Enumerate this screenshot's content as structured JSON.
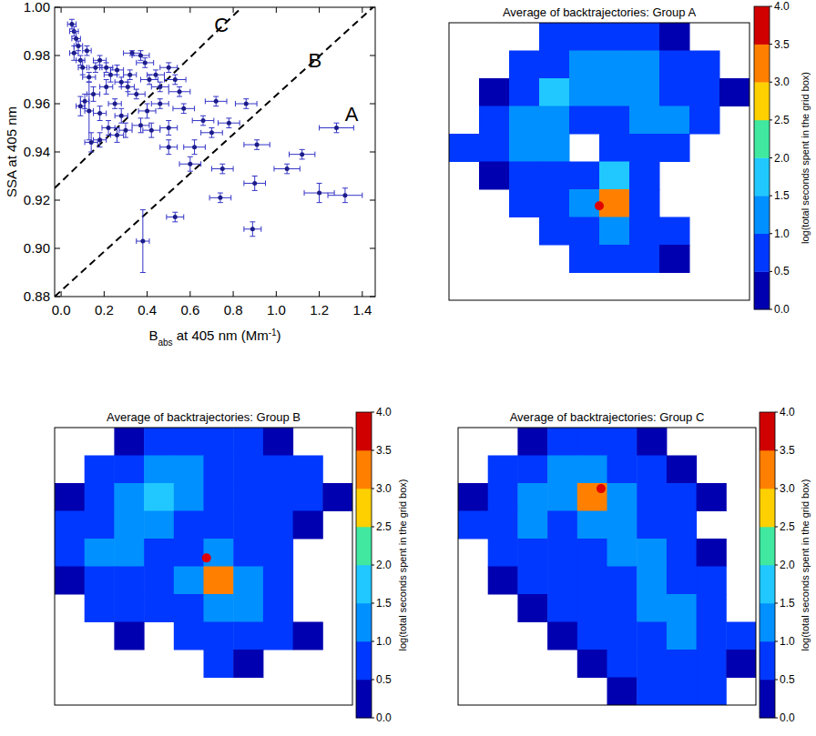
{
  "chart_data": [
    {
      "type": "scatter",
      "x_label": [
        {
          "text": "B"
        },
        {
          "text": "abs",
          "style": "sub"
        },
        {
          "text": " at 405 nm (Mm"
        },
        {
          "text": "-1",
          "style": "sup"
        },
        {
          "text": ")"
        }
      ],
      "y_label": "SSA at 405 nm",
      "xlim": [
        -0.03,
        1.46
      ],
      "ylim": [
        0.88,
        1.0
      ],
      "xticks": [
        {
          "value": 0,
          "label": "0.0"
        },
        0.2,
        0.4,
        0.6,
        0.8,
        {
          "value": 1,
          "label": "1.0"
        },
        1.2,
        1.4
      ],
      "yticks": [
        0.88,
        {
          "value": 0.9,
          "label": "0.90"
        },
        0.92,
        0.94,
        0.96,
        0.98,
        {
          "value": 1,
          "label": "1.00"
        }
      ],
      "marker": "circle",
      "color": "#1c1c8a",
      "x": [
        0.05,
        0.06,
        0.07,
        0.08,
        0.06,
        0.09,
        0.12,
        0.1,
        0.13,
        0.16,
        0.18,
        0.21,
        0.23,
        0.26,
        0.28,
        0.31,
        0.32,
        0.33,
        0.37,
        0.39,
        0.21,
        0.15,
        0.11,
        0.09,
        0.18,
        0.25,
        0.28,
        0.35,
        0.41,
        0.44,
        0.46,
        0.5,
        0.53,
        0.46,
        0.4,
        0.37,
        0.3,
        0.22,
        0.18,
        0.14,
        0.13,
        0.26,
        0.42,
        0.5,
        0.55,
        0.72,
        0.78,
        0.86,
        0.7,
        0.62,
        0.5,
        0.6,
        0.75,
        0.91,
        0.74,
        0.53,
        0.89,
        0.38,
        0.9,
        1.05,
        1.12,
        1.28,
        1.2,
        1.32,
        0.66,
        0.57
      ],
      "y": [
        0.993,
        0.99,
        0.987,
        0.984,
        0.981,
        0.978,
        0.982,
        0.975,
        0.971,
        0.975,
        0.978,
        0.975,
        0.972,
        0.974,
        0.969,
        0.967,
        0.972,
        0.981,
        0.98,
        0.977,
        0.967,
        0.964,
        0.961,
        0.959,
        0.956,
        0.96,
        0.955,
        0.964,
        0.97,
        0.972,
        0.967,
        0.975,
        0.97,
        0.96,
        0.957,
        0.951,
        0.949,
        0.95,
        0.945,
        0.944,
        0.957,
        0.947,
        0.949,
        0.95,
        0.965,
        0.961,
        0.952,
        0.96,
        0.948,
        0.942,
        0.942,
        0.935,
        0.933,
        0.943,
        0.921,
        0.913,
        0.908,
        0.903,
        0.927,
        0.933,
        0.939,
        0.95,
        0.923,
        0.922,
        0.953,
        0.958
      ],
      "x_error": [
        0.02,
        0.02,
        0.02,
        0.02,
        0.02,
        0.02,
        0.02,
        0.02,
        0.03,
        0.03,
        0.03,
        0.03,
        0.03,
        0.03,
        0.03,
        0.03,
        0.03,
        0.04,
        0.04,
        0.04,
        0.03,
        0.03,
        0.02,
        0.02,
        0.03,
        0.03,
        0.03,
        0.04,
        0.04,
        0.04,
        0.04,
        0.04,
        0.05,
        0.04,
        0.04,
        0.04,
        0.03,
        0.03,
        0.03,
        0.03,
        0.02,
        0.03,
        0.04,
        0.04,
        0.05,
        0.05,
        0.05,
        0.05,
        0.05,
        0.05,
        0.04,
        0.05,
        0.05,
        0.06,
        0.05,
        0.04,
        0.04,
        0.03,
        0.05,
        0.06,
        0.06,
        0.08,
        0.07,
        0.08,
        0.05,
        0.05
      ],
      "y_error": [
        0.002,
        0.002,
        0.003,
        0.002,
        0.003,
        0.002,
        0.002,
        0.003,
        0.002,
        0.002,
        0.002,
        0.002,
        0.003,
        0.002,
        0.002,
        0.002,
        0.002,
        0.001,
        0.002,
        0.002,
        0.003,
        0.003,
        0.003,
        0.004,
        0.003,
        0.002,
        0.003,
        0.002,
        0.002,
        0.002,
        0.002,
        0.002,
        0.002,
        0.002,
        0.003,
        0.003,
        0.003,
        0.003,
        0.003,
        0.004,
        0.012,
        0.003,
        0.003,
        0.003,
        0.002,
        0.002,
        0.002,
        0.002,
        0.002,
        0.003,
        0.003,
        0.003,
        0.002,
        0.002,
        0.002,
        0.002,
        0.003,
        0.013,
        0.003,
        0.002,
        0.002,
        0.002,
        0.004,
        0.003,
        0.002,
        0.002
      ],
      "lines": [
        {
          "x": [
            -0.03,
            0.84
          ],
          "y": [
            0.925,
            1.0
          ],
          "line_style": "dashed"
        },
        {
          "x": [
            -0.03,
            1.45
          ],
          "y": [
            0.88,
            1.0
          ],
          "line_style": "dashed"
        }
      ],
      "annotations": [
        {
          "text": "C",
          "x": 0.745,
          "y": 0.99
        },
        {
          "text": "B",
          "x": 1.18,
          "y": 0.975
        },
        {
          "text": "A",
          "x": 1.35,
          "y": 0.953
        }
      ]
    },
    {
      "type": "heatmap",
      "title": "Average of backtrajectories: Group A",
      "colorbar_label": "log(total seconds spent in the grid box)",
      "colorbar_range": [
        0,
        4
      ],
      "colorbar_ticks": [
        {
          "value": 0,
          "label": "0.0"
        },
        0.5,
        {
          "value": 1,
          "label": "1.0"
        },
        1.5,
        {
          "value": 2,
          "label": "2.0"
        },
        2.5,
        {
          "value": 3,
          "label": "3.0"
        },
        3.5,
        {
          "value": 4,
          "label": "4.0"
        }
      ],
      "colors": [
        "#0000b0",
        "#0038ff",
        "#0090ff",
        "#20c8ff",
        "#40e8a0",
        "#ffd000",
        "#ff8000",
        "#d00000"
      ],
      "cells": [
        [
          null,
          null,
          null,
          0.6,
          0.8,
          0.7,
          0.5,
          0.4,
          null,
          null
        ],
        [
          null,
          null,
          0.5,
          0.9,
          1.2,
          1.4,
          1.0,
          0.8,
          0.6,
          null
        ],
        [
          null,
          0.4,
          0.8,
          1.6,
          1.3,
          1.1,
          1.2,
          0.9,
          0.7,
          0.4
        ],
        [
          null,
          0.6,
          1.0,
          1.4,
          0.9,
          0.8,
          1.0,
          1.3,
          0.6,
          null
        ],
        [
          0.5,
          0.8,
          1.2,
          1.0,
          null,
          0.7,
          0.9,
          0.6,
          null,
          null
        ],
        [
          null,
          0.4,
          0.7,
          0.9,
          0.6,
          1.5,
          0.8,
          null,
          null,
          null
        ],
        [
          null,
          null,
          0.5,
          0.6,
          1.1,
          3.2,
          0.9,
          null,
          null,
          null
        ],
        [
          null,
          null,
          null,
          0.5,
          0.9,
          1.0,
          0.7,
          0.5,
          null,
          null
        ],
        [
          null,
          null,
          null,
          null,
          0.6,
          0.5,
          0.6,
          0.4,
          null,
          null
        ],
        [
          null,
          null,
          null,
          null,
          null,
          null,
          null,
          null,
          null,
          null
        ]
      ]
    },
    {
      "type": "heatmap",
      "title": "Average of backtrajectories: Group B",
      "colorbar_label": "log(total seconds spent in the grid box)",
      "colorbar_range": [
        0,
        4
      ],
      "colorbar_ticks": [
        {
          "value": 0,
          "label": "0.0"
        },
        0.5,
        {
          "value": 1,
          "label": "1.0"
        },
        1.5,
        {
          "value": 2,
          "label": "2.0"
        },
        2.5,
        {
          "value": 3,
          "label": "3.0"
        },
        3.5,
        {
          "value": 4,
          "label": "4.0"
        }
      ],
      "colors": [
        "#0000b0",
        "#0038ff",
        "#0090ff",
        "#20c8ff",
        "#40e8a0",
        "#ffd000",
        "#ff8000",
        "#d00000"
      ],
      "cells": [
        [
          null,
          null,
          0.4,
          0.6,
          0.7,
          0.6,
          0.5,
          0.4,
          null,
          null
        ],
        [
          null,
          0.5,
          0.8,
          1.0,
          1.1,
          0.9,
          0.8,
          0.7,
          0.5,
          null
        ],
        [
          0.4,
          0.7,
          1.2,
          1.5,
          1.0,
          0.8,
          0.9,
          0.8,
          0.6,
          0.4
        ],
        [
          0.5,
          0.9,
          1.3,
          1.1,
          0.7,
          0.6,
          0.8,
          0.6,
          0.4,
          null
        ],
        [
          0.6,
          1.0,
          1.1,
          0.8,
          0.6,
          1.3,
          0.7,
          0.5,
          null,
          null
        ],
        [
          0.4,
          0.7,
          0.9,
          0.6,
          1.0,
          3.1,
          1.2,
          0.5,
          null,
          null
        ],
        [
          null,
          0.5,
          0.6,
          0.5,
          0.8,
          1.2,
          1.0,
          0.6,
          null,
          null
        ],
        [
          null,
          null,
          0.4,
          null,
          0.5,
          0.8,
          0.7,
          0.5,
          0.4,
          null
        ],
        [
          null,
          null,
          null,
          null,
          null,
          0.5,
          0.4,
          null,
          null,
          null
        ],
        [
          null,
          null,
          null,
          null,
          null,
          null,
          null,
          null,
          null,
          null
        ]
      ]
    },
    {
      "type": "heatmap",
      "title": "Average of backtrajectories: Group C",
      "colorbar_label": "log(total seconds spent in the grid box)",
      "colorbar_range": [
        0,
        4
      ],
      "colorbar_ticks": [
        {
          "value": 0,
          "label": "0.0"
        },
        0.5,
        {
          "value": 1,
          "label": "1.0"
        },
        1.5,
        {
          "value": 2,
          "label": "2.0"
        },
        2.5,
        {
          "value": 3,
          "label": "3.0"
        },
        3.5,
        {
          "value": 4,
          "label": "4.0"
        }
      ],
      "colors": [
        "#0000b0",
        "#0038ff",
        "#0090ff",
        "#20c8ff",
        "#40e8a0",
        "#ffd000",
        "#ff8000",
        "#d00000"
      ],
      "cells": [
        [
          null,
          null,
          0.4,
          0.6,
          0.7,
          0.5,
          0.4,
          null,
          null,
          null
        ],
        [
          null,
          0.5,
          0.8,
          1.0,
          1.2,
          0.9,
          0.6,
          0.4,
          null,
          null
        ],
        [
          0.4,
          0.7,
          1.1,
          1.3,
          3.3,
          1.1,
          0.7,
          0.5,
          0.4,
          null
        ],
        [
          0.5,
          0.8,
          1.0,
          0.9,
          1.2,
          1.0,
          0.6,
          0.5,
          null,
          null
        ],
        [
          null,
          0.6,
          0.8,
          0.7,
          0.9,
          1.0,
          1.1,
          0.6,
          0.4,
          null
        ],
        [
          null,
          0.4,
          0.6,
          0.5,
          0.7,
          0.9,
          1.3,
          0.8,
          0.5,
          null
        ],
        [
          null,
          null,
          0.4,
          0.5,
          0.6,
          0.8,
          1.0,
          1.2,
          0.7,
          null
        ],
        [
          null,
          null,
          null,
          0.4,
          0.5,
          0.7,
          0.9,
          1.0,
          0.8,
          0.5
        ],
        [
          null,
          null,
          null,
          null,
          0.4,
          0.5,
          0.7,
          0.8,
          0.6,
          0.4
        ],
        [
          null,
          null,
          null,
          null,
          null,
          0.4,
          0.5,
          0.6,
          0.5,
          null
        ]
      ]
    }
  ]
}
